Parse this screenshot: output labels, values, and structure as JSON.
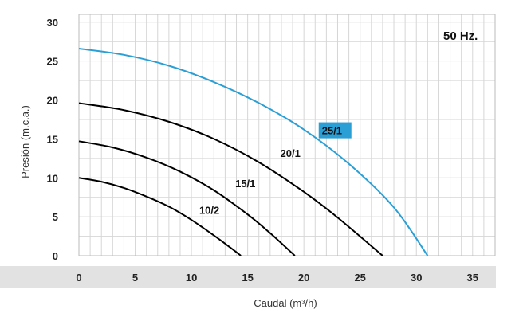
{
  "chart_data": {
    "type": "line",
    "annotation": "50 Hz.",
    "xlabel": "Caudal (m³/h)",
    "ylabel": "Presión (m.c.a.)",
    "xlim": [
      0,
      37
    ],
    "ylim": [
      0,
      31
    ],
    "x_ticks": [
      0,
      5,
      10,
      15,
      20,
      25,
      30,
      35
    ],
    "y_ticks": [
      0,
      5,
      10,
      15,
      20,
      25,
      30
    ],
    "grid": true,
    "series": [
      {
        "name": "10/2",
        "color": "#000000",
        "points": [
          [
            0,
            10.0
          ],
          [
            2,
            9.5
          ],
          [
            4,
            8.7
          ],
          [
            6,
            7.6
          ],
          [
            8,
            6.3
          ],
          [
            10,
            4.6
          ],
          [
            12,
            2.6
          ],
          [
            13.5,
            1.0
          ],
          [
            14.4,
            0
          ]
        ]
      },
      {
        "name": "15/1",
        "color": "#000000",
        "points": [
          [
            0,
            14.7
          ],
          [
            3,
            13.9
          ],
          [
            6,
            12.6
          ],
          [
            9,
            10.8
          ],
          [
            12,
            8.4
          ],
          [
            15,
            5.3
          ],
          [
            17,
            2.9
          ],
          [
            19.2,
            0
          ]
        ]
      },
      {
        "name": "20/1",
        "color": "#000000",
        "points": [
          [
            0,
            19.6
          ],
          [
            4,
            18.7
          ],
          [
            8,
            17.2
          ],
          [
            12,
            15.0
          ],
          [
            16,
            12.0
          ],
          [
            20,
            8.2
          ],
          [
            23,
            4.9
          ],
          [
            27,
            0
          ]
        ]
      },
      {
        "name": "25/1",
        "color": "#2a9fd6",
        "points": [
          [
            0,
            26.6
          ],
          [
            4,
            25.8
          ],
          [
            8,
            24.4
          ],
          [
            12,
            22.3
          ],
          [
            16,
            19.6
          ],
          [
            20,
            16.2
          ],
          [
            24,
            11.8
          ],
          [
            28,
            6.2
          ],
          [
            31,
            0
          ]
        ]
      }
    ],
    "series_labels": [
      {
        "name": "10/2",
        "x": 10.7,
        "y": 5.6,
        "boxed": false
      },
      {
        "name": "15/1",
        "x": 13.9,
        "y": 9.0,
        "boxed": false
      },
      {
        "name": "20/1",
        "x": 17.9,
        "y": 12.9,
        "boxed": false
      },
      {
        "name": "25/1",
        "x": 21.6,
        "y": 15.8,
        "boxed": true
      }
    ]
  }
}
